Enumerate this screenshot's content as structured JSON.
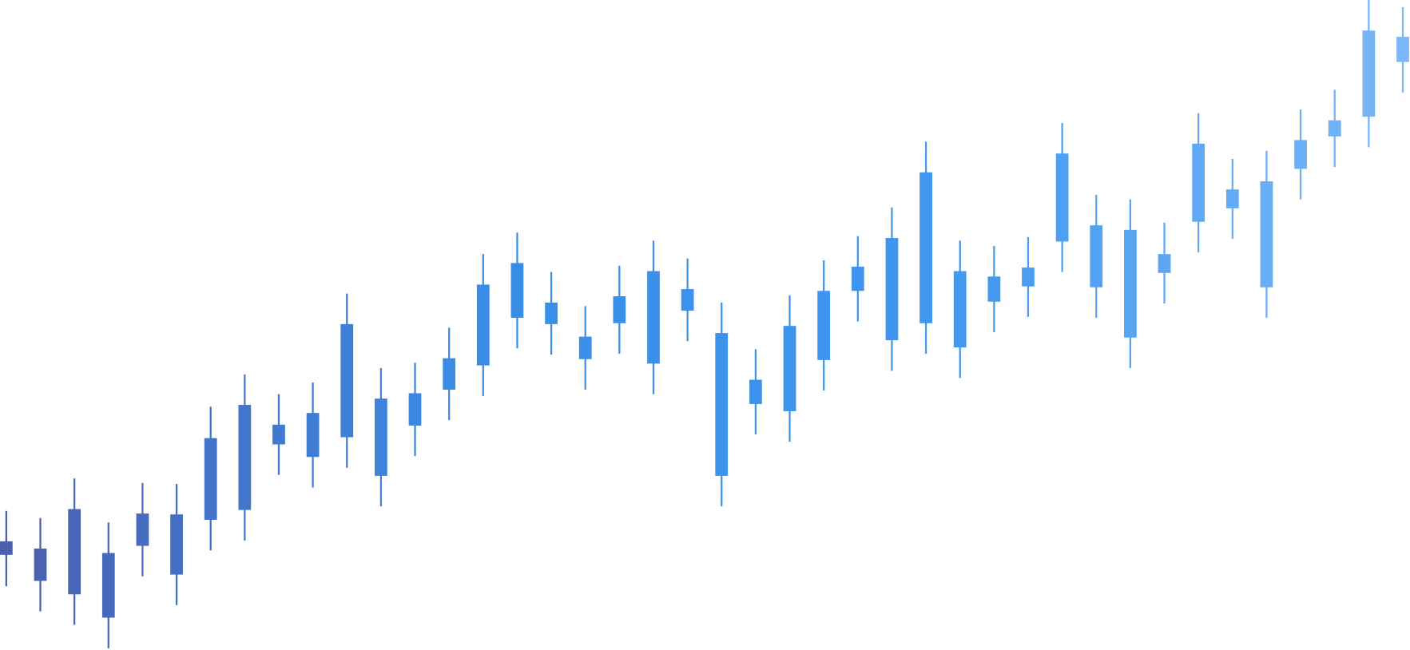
{
  "chart_data": {
    "type": "candlestick",
    "ylim": [
      0,
      724
    ],
    "grid": false,
    "color_gradient": [
      "#4a5fae",
      "#3a8ce6",
      "#3f97f0",
      "#7ab6f8"
    ],
    "high": [
      155,
      147,
      191,
      142,
      186,
      185,
      271,
      307,
      285,
      298,
      397,
      314,
      320,
      359,
      441,
      465,
      421,
      383,
      428,
      456,
      436,
      387,
      335,
      395,
      434,
      461,
      493,
      566,
      456,
      450,
      460,
      587,
      507,
      502,
      476,
      598,
      547,
      556,
      602,
      624,
      724,
      716
    ],
    "close": [
      121,
      113,
      157,
      108,
      152,
      151,
      236,
      273,
      251,
      264,
      363,
      280,
      286,
      325,
      407,
      431,
      387,
      349,
      394,
      422,
      402,
      353,
      301,
      361,
      400,
      427,
      459,
      532,
      422,
      416,
      426,
      553,
      473,
      468,
      441,
      564,
      513,
      522,
      568,
      590,
      690,
      683
    ],
    "open": [
      106,
      77,
      62,
      36,
      116,
      84,
      145,
      156,
      229,
      215,
      237,
      194,
      250,
      290,
      317,
      370,
      363,
      324,
      364,
      319,
      378,
      194,
      274,
      266,
      323,
      400,
      345,
      364,
      337,
      388,
      405,
      455,
      404,
      348,
      420,
      477,
      492,
      404,
      536,
      572,
      594,
      655
    ],
    "low": [
      71,
      43,
      28,
      2,
      82,
      50,
      111,
      122,
      195,
      181,
      203,
      160,
      216,
      256,
      283,
      336,
      329,
      290,
      330,
      285,
      344,
      160,
      240,
      232,
      289,
      366,
      311,
      330,
      303,
      354,
      371,
      421,
      370,
      314,
      386,
      443,
      458,
      370,
      502,
      538,
      560,
      621
    ]
  }
}
